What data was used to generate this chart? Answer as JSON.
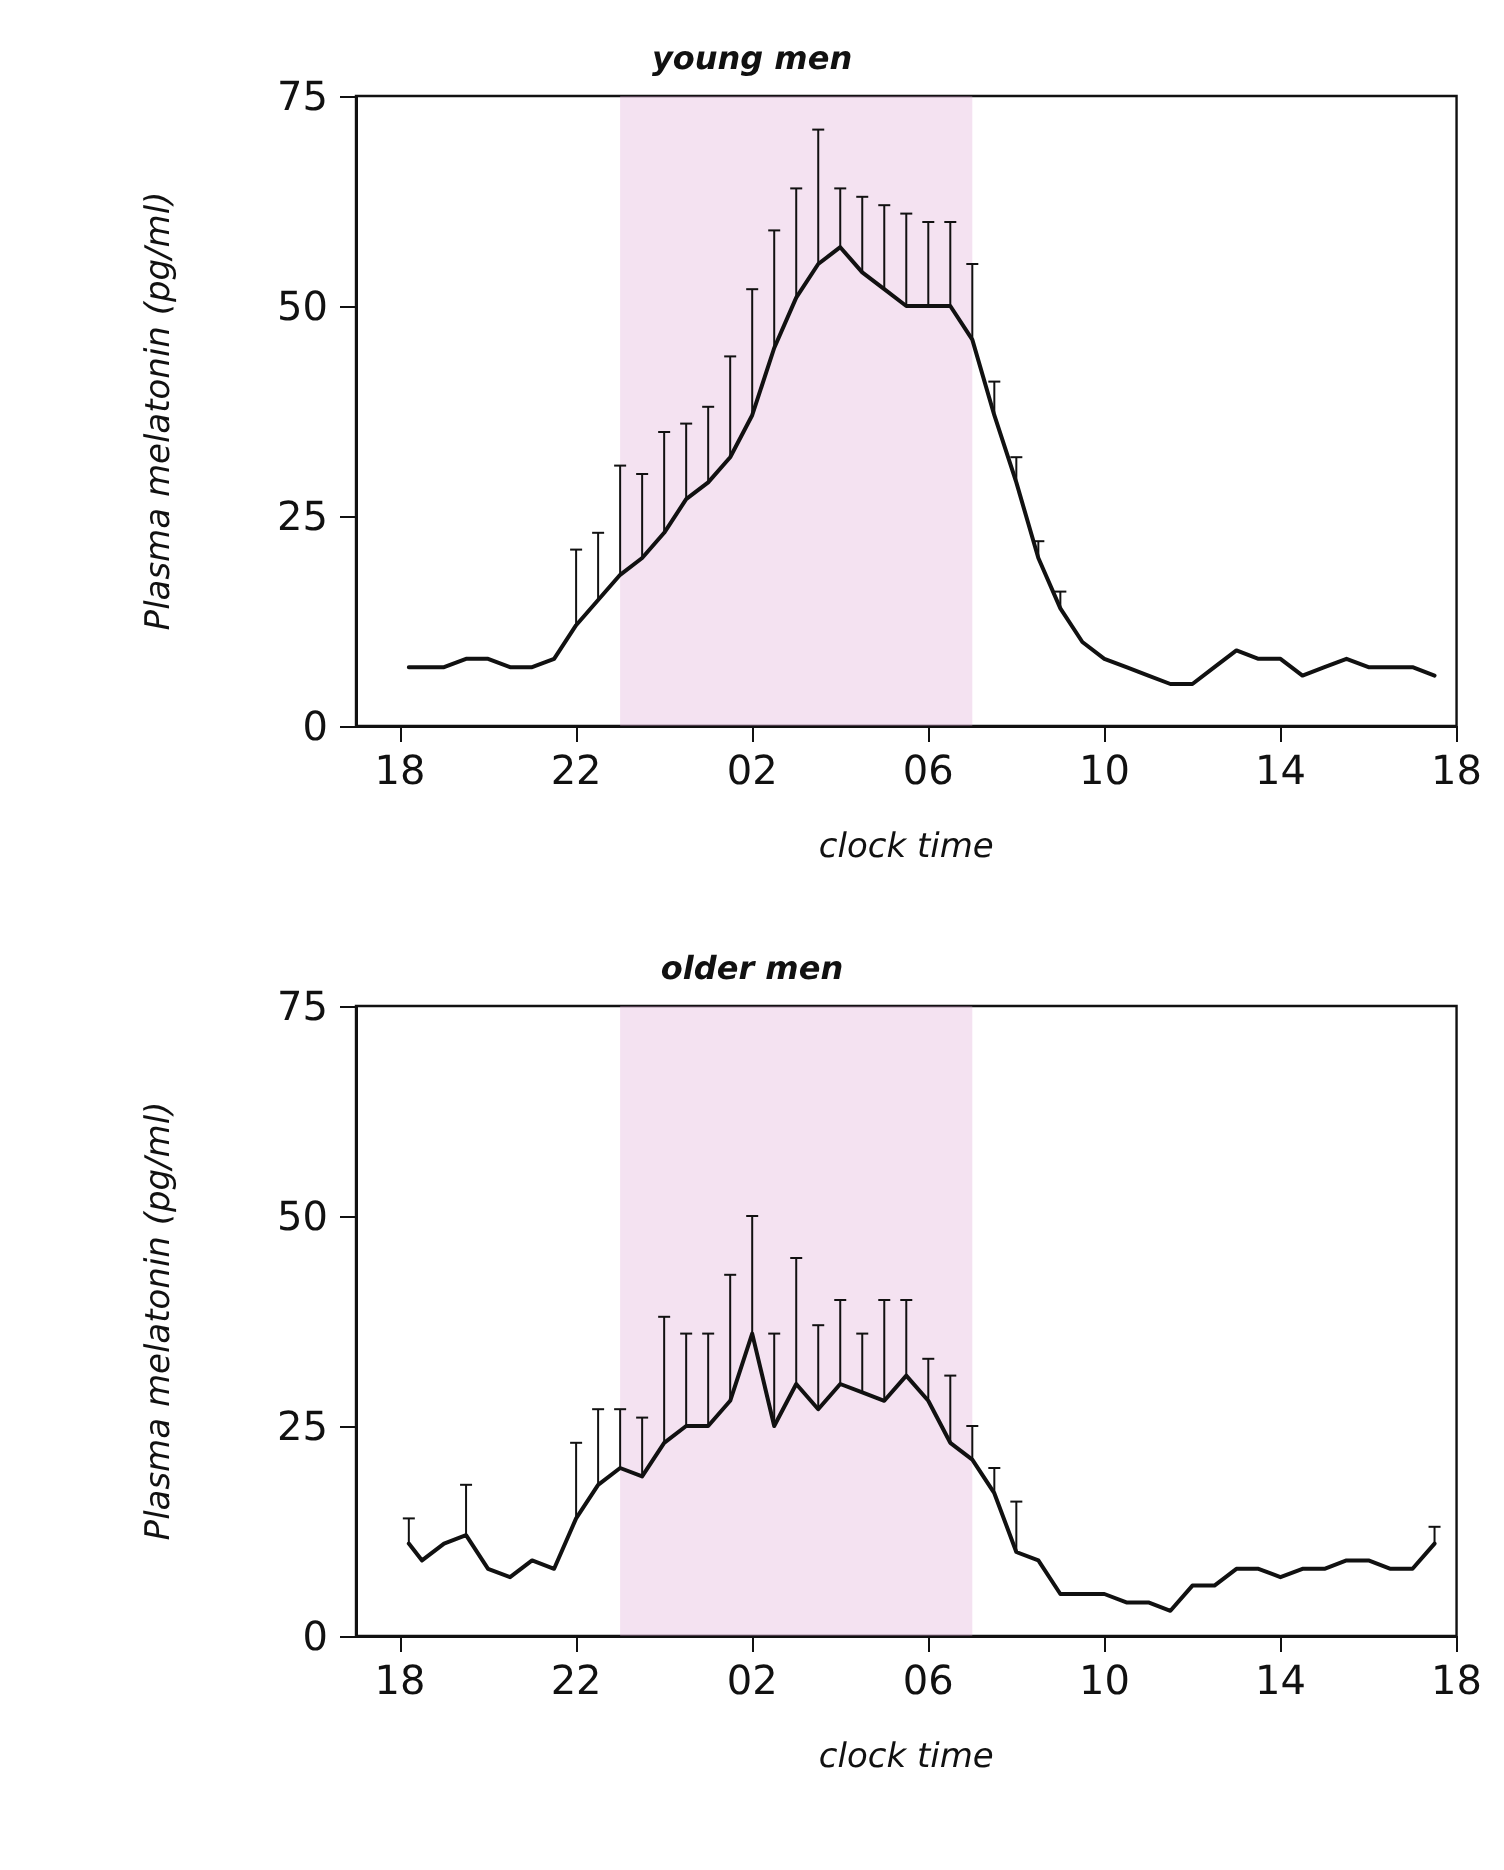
{
  "chart_data": [
    {
      "type": "line",
      "title": "young men",
      "xlabel": "clock time",
      "ylabel": "Plasma melatonin (pg/ml)",
      "xlim": [
        "--01-01T17:00",
        "--01-02T18:00"
      ],
      "ylim": [
        0,
        75
      ],
      "yticks": [
        0,
        25,
        50,
        75
      ],
      "xticks": [
        {
          "value": "--01-01T18:00",
          "label": "18"
        },
        {
          "value": "--01-01T22:00",
          "label": "22"
        },
        {
          "value": "--01-02T02:00",
          "label": "02"
        },
        {
          "value": "--01-02T06:00",
          "label": "06"
        },
        {
          "value": "--01-02T10:00",
          "label": "10"
        },
        {
          "value": "--01-02T14:00",
          "label": "14"
        },
        {
          "value": "--01-02T18:00",
          "label": "18"
        }
      ],
      "grid": false,
      "bands": [
        {
          "axis": "x",
          "from": "--01-01T23:00",
          "to": "--01-02T07:00",
          "color": "#d9a0d0"
        }
      ],
      "x": [
        "--01-01T18:12",
        "--01-01T18:30",
        "--01-01T19:00",
        "--01-01T19:30",
        "--01-01T20:00",
        "--01-01T20:30",
        "--01-01T21:00",
        "--01-01T21:30",
        "--01-01T22:00",
        "--01-01T22:30",
        "--01-01T23:00",
        "--01-01T23:30",
        "--01-02T00:00",
        "--01-02T00:30",
        "--01-02T01:00",
        "--01-02T01:30",
        "--01-02T02:00",
        "--01-02T02:30",
        "--01-02T03:00",
        "--01-02T03:30",
        "--01-02T04:00",
        "--01-02T04:30",
        "--01-02T05:00",
        "--01-02T05:30",
        "--01-02T06:00",
        "--01-02T06:30",
        "--01-02T07:00",
        "--01-02T07:30",
        "--01-02T08:00",
        "--01-02T08:30",
        "--01-02T09:00",
        "--01-02T09:30",
        "--01-02T10:00",
        "--01-02T10:30",
        "--01-02T11:00",
        "--01-02T11:30",
        "--01-02T12:00",
        "--01-02T12:30",
        "--01-02T13:00",
        "--01-02T13:30",
        "--01-02T14:00",
        "--01-02T14:30",
        "--01-02T15:00",
        "--01-02T15:30",
        "--01-02T16:00",
        "--01-02T16:30",
        "--01-02T17:00",
        "--01-02T17:30"
      ],
      "series": [
        {
          "color": "#111111",
          "values": [
            7,
            7,
            7,
            8,
            8,
            7,
            7,
            8,
            12,
            15,
            18,
            20,
            23,
            27,
            29,
            32,
            37,
            45,
            51,
            55,
            57,
            54,
            52,
            50,
            50,
            50,
            46,
            37,
            29,
            20,
            14,
            10,
            8,
            7,
            6,
            5,
            5,
            7,
            9,
            8,
            8,
            6,
            7,
            8,
            7,
            7,
            7,
            6
          ],
          "errors": [
            null,
            null,
            null,
            null,
            null,
            null,
            null,
            null,
            [
              12,
              21
            ],
            [
              15,
              23
            ],
            [
              18,
              31
            ],
            [
              20,
              30
            ],
            [
              23,
              35
            ],
            [
              27,
              36
            ],
            [
              29,
              38
            ],
            [
              32,
              44
            ],
            [
              37,
              52
            ],
            [
              45,
              59
            ],
            [
              51,
              64
            ],
            [
              55,
              71
            ],
            [
              57,
              64
            ],
            [
              54,
              63
            ],
            [
              52,
              62
            ],
            [
              50,
              61
            ],
            [
              50,
              60
            ],
            [
              50,
              60
            ],
            [
              46,
              55
            ],
            [
              37,
              41
            ],
            [
              29,
              32
            ],
            [
              20,
              22
            ],
            [
              14,
              16
            ],
            null,
            null,
            null,
            null,
            null,
            null,
            null,
            null,
            null,
            null,
            null,
            null,
            null,
            null,
            null,
            null,
            null
          ]
        }
      ]
    },
    {
      "type": "line",
      "title": "older men",
      "xlabel": "clock time",
      "ylabel": "Plasma melatonin (pg/ml)",
      "xlim": [
        "--01-01T17:00",
        "--01-02T18:00"
      ],
      "ylim": [
        0,
        75
      ],
      "yticks": [
        0,
        25,
        50,
        75
      ],
      "xticks": [
        {
          "value": "--01-01T18:00",
          "label": "18"
        },
        {
          "value": "--01-01T22:00",
          "label": "22"
        },
        {
          "value": "--01-02T02:00",
          "label": "02"
        },
        {
          "value": "--01-02T06:00",
          "label": "06"
        },
        {
          "value": "--01-02T10:00",
          "label": "10"
        },
        {
          "value": "--01-02T14:00",
          "label": "14"
        },
        {
          "value": "--01-02T18:00",
          "label": "18"
        }
      ],
      "grid": false,
      "bands": [
        {
          "axis": "x",
          "from": "--01-01T23:00",
          "to": "--01-02T07:00",
          "color": "#d9a0d0"
        }
      ],
      "x": [
        "--01-01T18:12",
        "--01-01T18:30",
        "--01-01T19:00",
        "--01-01T19:30",
        "--01-01T20:00",
        "--01-01T20:30",
        "--01-01T21:00",
        "--01-01T21:30",
        "--01-01T22:00",
        "--01-01T22:30",
        "--01-01T23:00",
        "--01-01T23:30",
        "--01-02T00:00",
        "--01-02T00:30",
        "--01-02T01:00",
        "--01-02T01:30",
        "--01-02T02:00",
        "--01-02T02:30",
        "--01-02T03:00",
        "--01-02T03:30",
        "--01-02T04:00",
        "--01-02T04:30",
        "--01-02T05:00",
        "--01-02T05:30",
        "--01-02T06:00",
        "--01-02T06:30",
        "--01-02T07:00",
        "--01-02T07:30",
        "--01-02T08:00",
        "--01-02T08:30",
        "--01-02T09:00",
        "--01-02T09:30",
        "--01-02T10:00",
        "--01-02T10:30",
        "--01-02T11:00",
        "--01-02T11:30",
        "--01-02T12:00",
        "--01-02T12:30",
        "--01-02T13:00",
        "--01-02T13:30",
        "--01-02T14:00",
        "--01-02T14:30",
        "--01-02T15:00",
        "--01-02T15:30",
        "--01-02T16:00",
        "--01-02T16:30",
        "--01-02T17:00",
        "--01-02T17:30"
      ],
      "series": [
        {
          "color": "#111111",
          "values": [
            11,
            9,
            11,
            12,
            8,
            7,
            9,
            8,
            14,
            18,
            20,
            19,
            23,
            25,
            25,
            28,
            36,
            25,
            30,
            27,
            30,
            29,
            28,
            31,
            28,
            23,
            21,
            17,
            10,
            9,
            5,
            5,
            5,
            4,
            4,
            3,
            6,
            6,
            8,
            8,
            7,
            8,
            8,
            9,
            9,
            8,
            8,
            11
          ],
          "errors": [
            [
              11,
              14
            ],
            null,
            null,
            [
              12,
              18
            ],
            null,
            null,
            null,
            null,
            [
              14,
              23
            ],
            [
              18,
              27
            ],
            [
              20,
              27
            ],
            [
              19,
              26
            ],
            [
              23,
              38
            ],
            [
              25,
              36
            ],
            [
              25,
              36
            ],
            [
              28,
              43
            ],
            [
              36,
              50
            ],
            [
              25,
              36
            ],
            [
              30,
              45
            ],
            [
              27,
              37
            ],
            [
              30,
              40
            ],
            [
              29,
              36
            ],
            [
              28,
              40
            ],
            [
              31,
              40
            ],
            [
              28,
              33
            ],
            [
              23,
              31
            ],
            [
              21,
              25
            ],
            [
              17,
              20
            ],
            [
              10,
              16
            ],
            null,
            null,
            null,
            null,
            null,
            null,
            null,
            null,
            null,
            null,
            null,
            null,
            null,
            null,
            null,
            null,
            null,
            null,
            [
              11,
              13
            ]
          ]
        }
      ]
    }
  ]
}
